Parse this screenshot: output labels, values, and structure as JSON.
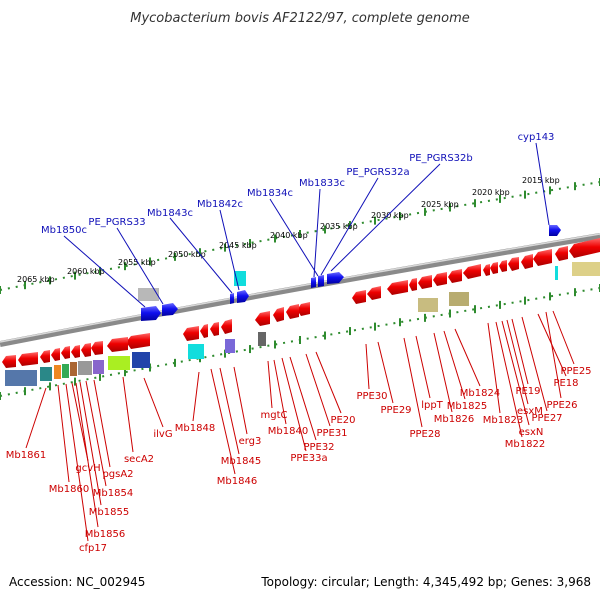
{
  "title": "Mycobacterium bovis AF2122/97, complete genome",
  "footer": {
    "accession": "Accession: NC_002945",
    "summary": "Topology: circular; Length: 4,345,492 bp; Genes: 3,968"
  },
  "colors": {
    "forward_gene": "#1a1aee",
    "reverse_gene": "#ee1111",
    "backbone": "#8a8a8a",
    "ruler": "#2e8b2e",
    "upper_label": "#1010b8",
    "lower_label": "#cc0000"
  },
  "ruler_labels": [
    "2015 kbp",
    "2020 kbp",
    "2025 kbp",
    "2030 kbp",
    "2035 kbp",
    "2040 kbp",
    "2045 kbp",
    "2050 kbp",
    "2055 kbp",
    "2060 kbp",
    "2065 kbp"
  ],
  "upper_labels": [
    "cyp143",
    "PE_PGRS32b",
    "PE_PGRS32a",
    "Mb1833c",
    "Mb1834c",
    "Mb1842c",
    "Mb1843c",
    "PE_PGRS33",
    "Mb1850c"
  ],
  "lower_labels": [
    "Mb1861",
    "Mb1860",
    "gcvH",
    "pgsA2",
    "Mb1854",
    "Mb1855",
    "Mb1856",
    "cfp17",
    "secA2",
    "ilvG",
    "Mb1848",
    "Mb1845",
    "Mb1846",
    "erg3",
    "mgtC",
    "Mb1840",
    "PPE32",
    "PPE33a",
    "PPE31",
    "PE20",
    "PPE30",
    "PPE29",
    "PPE28",
    "lppT",
    "Mb1826",
    "Mb1825",
    "Mb1824",
    "Mb1823",
    "Mb1822",
    "esxN",
    "esxM",
    "PE19",
    "PPE27",
    "PE18",
    "PPE26",
    "PPE25"
  ]
}
